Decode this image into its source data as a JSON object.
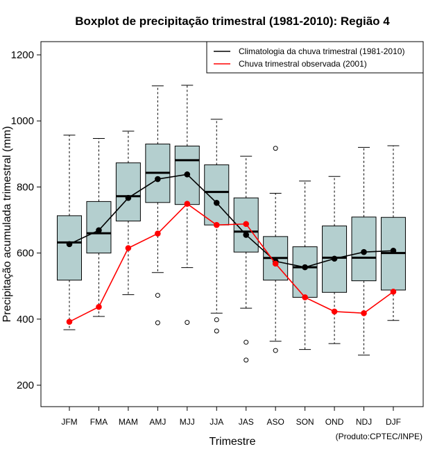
{
  "chart_data": {
    "type": "boxplot",
    "title": "Boxplot de precipitação trimestral (1981-2010): Região 4",
    "xlabel": "Trimestre",
    "ylabel": "Precipitação acumulada trimestral (mm)",
    "ylim": [
      135,
      1240
    ],
    "yticks": [
      200,
      400,
      600,
      800,
      1000,
      1200
    ],
    "credit": "(Produto:CPTEC/INPE)",
    "legend": {
      "position": "top-right",
      "entries": [
        {
          "label": "Climatologia da chuva trimestral (1981-2010)",
          "color": "#000000"
        },
        {
          "label": "Chuva trimestral observada (2001)",
          "color": "#ff0000"
        }
      ]
    },
    "categories": [
      "JFM",
      "FMA",
      "MAM",
      "AMJ",
      "MJJ",
      "JJA",
      "JAS",
      "ASO",
      "SON",
      "OND",
      "NDJ",
      "DJF"
    ],
    "boxes": [
      {
        "whisker_low": 368,
        "q1": 518,
        "median": 632,
        "q3": 713,
        "whisker_high": 957,
        "outliers": []
      },
      {
        "whisker_low": 408,
        "q1": 600,
        "median": 660,
        "q3": 756,
        "whisker_high": 947,
        "outliers": []
      },
      {
        "whisker_low": 474,
        "q1": 697,
        "median": 772,
        "q3": 873,
        "whisker_high": 969,
        "outliers": []
      },
      {
        "whisker_low": 541,
        "q1": 753,
        "median": 843,
        "q3": 930,
        "whisker_high": 1106,
        "outliers": [
          472,
          389
        ]
      },
      {
        "whisker_low": 556,
        "q1": 747,
        "median": 881,
        "q3": 924,
        "whisker_high": 1108,
        "outliers": [
          390
        ]
      },
      {
        "whisker_low": 418,
        "q1": 685,
        "median": 785,
        "q3": 867,
        "whisker_high": 1005,
        "outliers": [
          398,
          364
        ]
      },
      {
        "whisker_low": 433,
        "q1": 603,
        "median": 665,
        "q3": 767,
        "whisker_high": 893,
        "outliers": [
          330,
          276
        ]
      },
      {
        "whisker_low": 333,
        "q1": 518,
        "median": 585,
        "q3": 650,
        "whisker_high": 781,
        "outliers": [
          917,
          305
        ]
      },
      {
        "whisker_low": 308,
        "q1": 466,
        "median": 557,
        "q3": 619,
        "whisker_high": 818,
        "outliers": []
      },
      {
        "whisker_low": 326,
        "q1": 481,
        "median": 586,
        "q3": 682,
        "whisker_high": 832,
        "outliers": []
      },
      {
        "whisker_low": 291,
        "q1": 516,
        "median": 586,
        "q3": 709,
        "whisker_high": 920,
        "outliers": []
      },
      {
        "whisker_low": 396,
        "q1": 488,
        "median": 600,
        "q3": 708,
        "whisker_high": 925,
        "outliers": []
      }
    ],
    "series": [
      {
        "name": "Climatologia da chuva trimestral (1981-2010)",
        "color": "#000000",
        "values": [
          627,
          669,
          767,
          824,
          838,
          752,
          655,
          575,
          557,
          583,
          603,
          607
        ]
      },
      {
        "name": "Chuva trimestral observada (2001)",
        "color": "#ff0000",
        "values": [
          392,
          437,
          615,
          659,
          749,
          685,
          688,
          568,
          466,
          423,
          418,
          483
        ]
      }
    ],
    "box_fill": "#b4cfcf"
  }
}
